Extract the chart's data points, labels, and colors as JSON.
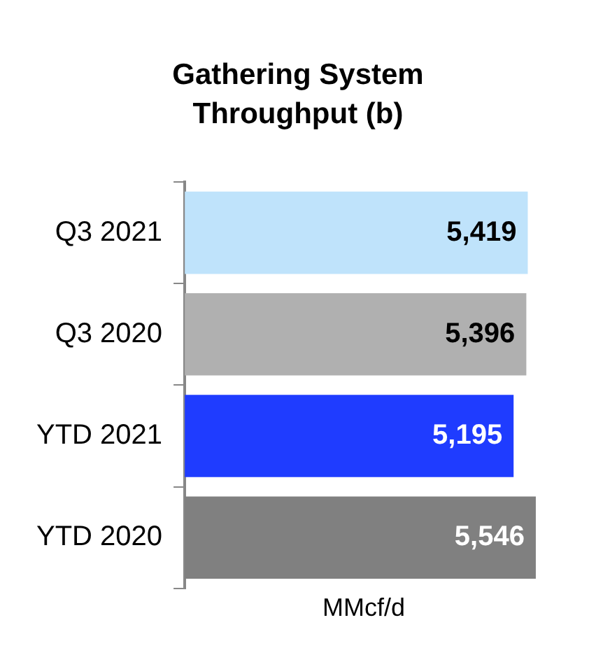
{
  "chart_data": {
    "type": "bar",
    "orientation": "horizontal",
    "title": "Gathering System Throughput (b)",
    "xlabel": "MMcf/d",
    "categories": [
      "Q3 2021",
      "Q3 2020",
      "YTD 2021",
      "YTD 2020"
    ],
    "values": [
      5419,
      5396,
      5195,
      5546
    ],
    "colors": [
      "#bfe3fb",
      "#b0b0b0",
      "#1f3cff",
      "#808080"
    ],
    "value_labels": [
      "5,419",
      "5,396",
      "5,195",
      "5,546"
    ],
    "tick_labels": "y",
    "grid": false,
    "legend": false
  }
}
